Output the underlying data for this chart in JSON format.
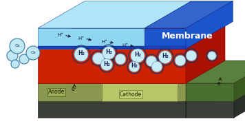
{
  "membrane_label": "Membrane",
  "h2_label": "H₂",
  "o2_label": "O₂",
  "e_label": "e⁻",
  "hplus_label": "H⁺",
  "bg_color": "#ffffff",
  "anode_text": "Anode",
  "cathode_text": "Cathode",
  "membrane_light": "#8dd8f0",
  "membrane_dark": "#1a55cc",
  "membrane_top": "#b0e5f8",
  "red_front": "#cc2200",
  "red_top": "#dd3311",
  "red_side": "#aa1100",
  "green_top": "#4a7a30",
  "green_front": "#3a6020",
  "green_side": "#2a4a18",
  "base_top": "#555a50",
  "base_front": "#3a3f38",
  "base_side": "#2a2f28",
  "olive_front": "#8a9850",
  "olive_top": "#9aaa58",
  "olive_side": "#6a7838",
  "cathode_front": "#b8c868",
  "cathode_top": "#ccd878",
  "bubble_fill": "#c8edf8",
  "bubble_edge": "#1a3366",
  "bubble_inner": "#d8f0fa",
  "o2_fill": "#c0e8f5",
  "o2_edge": "#3377aa"
}
